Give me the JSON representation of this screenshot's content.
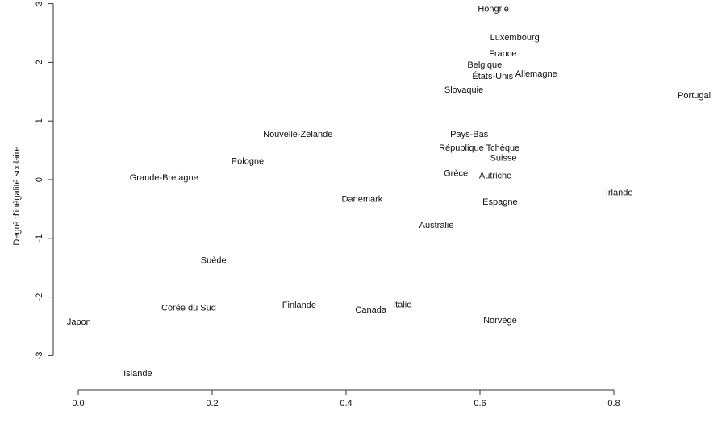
{
  "chart_data": {
    "type": "scatter",
    "title": "",
    "xlabel": "",
    "ylabel": "Degré d'inégalité scolaire",
    "xlim": [
      0.0,
      0.9
    ],
    "ylim": [
      -3.3,
      3.0
    ],
    "grid": false,
    "x_ticks": [
      "0.0",
      "0.2",
      "0.4",
      "0.6",
      "0.8"
    ],
    "y_ticks": [
      "-3",
      "-2",
      "-1",
      "0",
      "1",
      "2",
      "3"
    ],
    "points": [
      {
        "label": "Hongrie",
        "x": 0.62,
        "y": 2.92
      },
      {
        "label": "Luxembourg",
        "x": 0.652,
        "y": 2.43
      },
      {
        "label": "France",
        "x": 0.634,
        "y": 2.31
      },
      {
        "label": "États-Unis",
        "x": 0.619,
        "y": 1.77
      },
      {
        "label": "Allemagne",
        "x": 0.684,
        "y": 1.81
      },
      {
        "label": "Slovaquie",
        "x": 0.576,
        "y": 1.69
      },
      {
        "label": "Belgique",
        "x": 0.607,
        "y": 1.66
      },
      {
        "label": "Portugal",
        "x": 0.92,
        "y": 1.44
      },
      {
        "label": "Pays-Bas",
        "x": 0.584,
        "y": 0.78
      },
      {
        "label": "République Tchèque",
        "x": 0.599,
        "y": 0.55
      },
      {
        "label": "Suisse",
        "x": 0.635,
        "y": 0.38
      },
      {
        "label": "Autriche",
        "x": 0.623,
        "y": 0.23
      },
      {
        "label": "Grèce",
        "x": 0.564,
        "y": 0.12
      },
      {
        "label": "Nouvelle-Zélande",
        "x": 0.328,
        "y": 0.78
      },
      {
        "label": "Pologne",
        "x": 0.253,
        "y": 0.32
      },
      {
        "label": "Grande-Bretagne",
        "x": 0.128,
        "y": 0.04
      },
      {
        "label": "Danemark",
        "x": 0.424,
        "y": -0.32
      },
      {
        "label": "Espagne",
        "x": 0.63,
        "y": -0.37
      },
      {
        "label": "Irlande",
        "x": 0.808,
        "y": -0.21
      },
      {
        "label": "Australie",
        "x": 0.535,
        "y": -0.77
      },
      {
        "label": "Suède",
        "x": 0.202,
        "y": -1.37
      },
      {
        "label": "Corée du Sud",
        "x": 0.165,
        "y": -2.18
      },
      {
        "label": "Finlande",
        "x": 0.33,
        "y": -2.13
      },
      {
        "label": "Canada",
        "x": 0.437,
        "y": -2.21
      },
      {
        "label": "Italie",
        "x": 0.484,
        "y": -2.12
      },
      {
        "label": "Norvège",
        "x": 0.63,
        "y": -2.39
      },
      {
        "label": "Japon",
        "x": 0.001,
        "y": -2.42
      },
      {
        "label": "Islande",
        "x": 0.089,
        "y": -3.3
      }
    ]
  }
}
